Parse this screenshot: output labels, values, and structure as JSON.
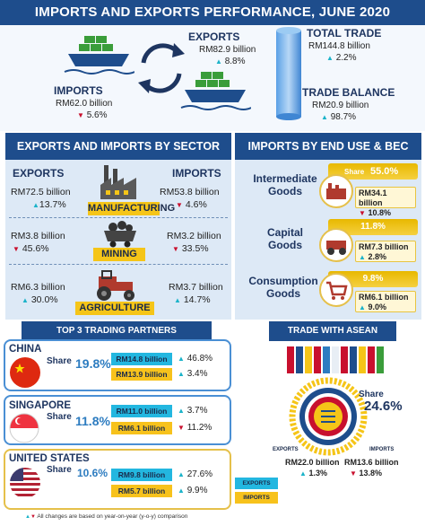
{
  "title": "IMPORTS AND EXPORTS PERFORMANCE, JUNE 2020",
  "overview": {
    "exports": {
      "label": "EXPORTS",
      "value": "RM82.9 billion",
      "change": "8.8%",
      "direction": "up"
    },
    "imports": {
      "label": "IMPORTS",
      "value": "RM62.0 billion",
      "change": "5.6%",
      "direction": "down"
    },
    "total_trade": {
      "label": "TOTAL TRADE",
      "value": "RM144.8 billion",
      "change": "2.2%",
      "direction": "up"
    },
    "trade_balance": {
      "label": "TRADE BALANCE",
      "value": "RM20.9 billion",
      "change": "98.7%",
      "direction": "up"
    }
  },
  "sector": {
    "heading": "EXPORTS AND IMPORTS BY SECTOR",
    "exports_label": "EXPORTS",
    "imports_label": "IMPORTS",
    "rows": [
      {
        "name": "MANUFACTURING",
        "exp_value": "RM72.5 billion",
        "exp_change": "13.7%",
        "exp_dir": "up",
        "imp_value": "RM53.8 billion",
        "imp_change": "4.6%",
        "imp_dir": "down"
      },
      {
        "name": "MINING",
        "exp_value": "RM3.8 billion",
        "exp_change": "45.6%",
        "exp_dir": "down",
        "imp_value": "RM3.2 billion",
        "imp_change": "33.5%",
        "imp_dir": "down"
      },
      {
        "name": "AGRICULTURE",
        "exp_value": "RM6.3 billion",
        "exp_change": "30.0%",
        "exp_dir": "up",
        "imp_value": "RM3.7 billion",
        "imp_change": "14.7%",
        "imp_dir": "up"
      }
    ]
  },
  "bec": {
    "heading": "IMPORTS BY END USE & BEC",
    "share_label": "Share",
    "rows": [
      {
        "name_line1": "Intermediate",
        "name_line2": "Goods",
        "share": "55.0%",
        "value": "RM34.1 billion",
        "change": "10.8%",
        "dir": "down"
      },
      {
        "name_line1": "Capital",
        "name_line2": "Goods",
        "share": "11.8%",
        "value": "RM7.3 billion",
        "change": "2.8%",
        "dir": "up"
      },
      {
        "name_line1": "Consumption",
        "name_line2": "Goods",
        "share": "9.8%",
        "value": "RM6.1 billion",
        "change": "9.0%",
        "dir": "up"
      }
    ]
  },
  "partners": {
    "heading": "TOP 3 TRADING PARTNERS",
    "share_label": "Share",
    "list": [
      {
        "name": "CHINA",
        "share": "19.8%",
        "exports": "RM14.8 billion",
        "exp_change": "46.8%",
        "exp_dir": "up",
        "imports": "RM13.9 billion",
        "imp_change": "3.4%",
        "imp_dir": "up"
      },
      {
        "name": "SINGAPORE",
        "share": "11.8%",
        "exports": "RM11.0 billion",
        "exp_change": "3.7%",
        "exp_dir": "up",
        "imports": "RM6.1 billion",
        "imp_change": "11.2%",
        "imp_dir": "down"
      },
      {
        "name": "UNITED STATES",
        "share": "10.6%",
        "exports": "RM9.8 billion",
        "exp_change": "27.6%",
        "exp_dir": "up",
        "imports": "RM5.7 billion",
        "imp_change": "9.9%",
        "imp_dir": "up"
      }
    ],
    "legend_exports": "EXPORTS",
    "legend_imports": "IMPORTS"
  },
  "asean": {
    "heading": "TRADE WITH ASEAN",
    "share_label": "Share",
    "share": "24.6%",
    "exports_label": "EXPORTS",
    "exports_value": "RM22.0 billion",
    "exports_change": "1.3%",
    "exports_dir": "up",
    "imports_label": "IMPORTS",
    "imports_value": "RM13.6 billion",
    "imports_change": "13.8%",
    "imports_dir": "down"
  },
  "footnote": "All changes are based on year-on-year (y-o-y) comparison",
  "colors": {
    "navy": "#1e4d8c",
    "gold": "#f5c518",
    "cyan": "#23b7e0",
    "up": "#1bb3c9",
    "down": "#c8102e"
  }
}
